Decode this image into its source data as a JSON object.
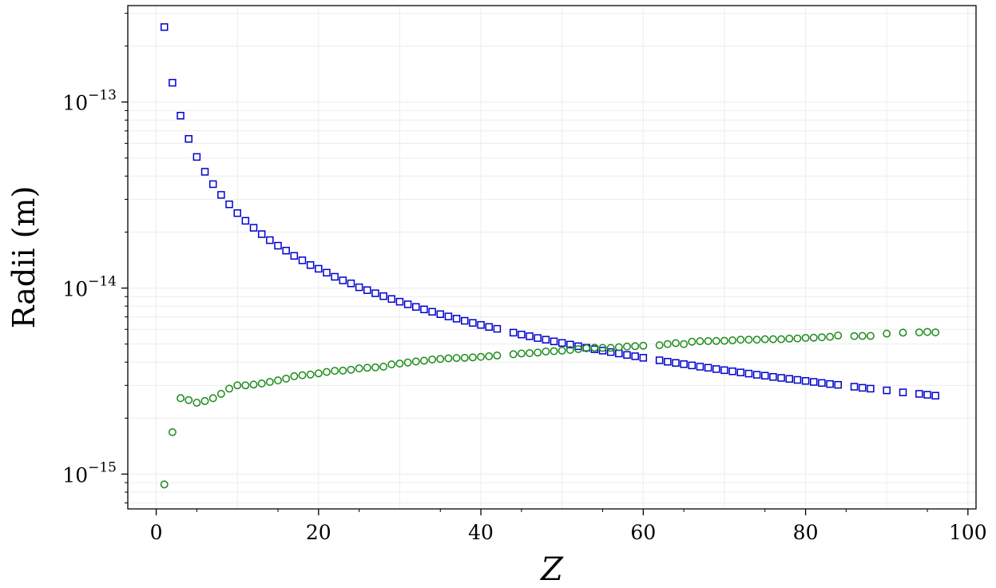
{
  "chart_data": {
    "type": "scatter",
    "title": "",
    "xlabel": "Z",
    "ylabel": "Radii (m)",
    "xlim": [
      -3.5,
      101
    ],
    "ylim": [
      6.5e-16,
      3.3e-13
    ],
    "yscale": "log",
    "grid": true,
    "legend": "none",
    "x_ticks": [
      {
        "value": 0,
        "label": "0"
      },
      {
        "value": 20,
        "label": "20"
      },
      {
        "value": 40,
        "label": "40"
      },
      {
        "value": 60,
        "label": "60"
      },
      {
        "value": 80,
        "label": "80"
      },
      {
        "value": 100,
        "label": "100"
      }
    ],
    "y_ticks": [
      {
        "value": 1e-15,
        "base": "10",
        "exp": "−15"
      },
      {
        "value": 1e-14,
        "base": "10",
        "exp": "−14"
      },
      {
        "value": 1e-13,
        "base": "10",
        "exp": "−13"
      }
    ],
    "series": [
      {
        "marker": "square",
        "color": "#0000cc",
        "x": [
          1,
          2,
          3,
          4,
          5,
          6,
          7,
          8,
          9,
          10,
          11,
          12,
          13,
          14,
          15,
          16,
          17,
          18,
          19,
          20,
          21,
          22,
          23,
          24,
          25,
          26,
          27,
          28,
          29,
          30,
          31,
          32,
          33,
          34,
          35,
          36,
          37,
          38,
          39,
          40,
          41,
          42,
          44,
          45,
          46,
          47,
          48,
          49,
          50,
          51,
          52,
          53,
          54,
          55,
          56,
          57,
          58,
          59,
          60,
          62,
          63,
          64,
          65,
          66,
          67,
          68,
          69,
          70,
          71,
          72,
          73,
          74,
          75,
          76,
          77,
          78,
          79,
          80,
          81,
          82,
          83,
          84,
          86,
          87,
          88,
          90,
          92,
          94,
          95,
          96
        ],
        "y": [
          2.53e-13,
          1.27e-13,
          8.45e-14,
          6.34e-14,
          5.07e-14,
          4.22e-14,
          3.62e-14,
          3.17e-14,
          2.82e-14,
          2.53e-14,
          2.3e-14,
          2.11e-14,
          1.95e-14,
          1.81e-14,
          1.69e-14,
          1.59e-14,
          1.49e-14,
          1.41e-14,
          1.33e-14,
          1.27e-14,
          1.21e-14,
          1.15e-14,
          1.1e-14,
          1.06e-14,
          1.01e-14,
          9.75e-15,
          9.38e-15,
          9.05e-15,
          8.74e-15,
          8.45e-15,
          8.18e-15,
          7.92e-15,
          7.68e-15,
          7.46e-15,
          7.24e-15,
          7.04e-15,
          6.85e-15,
          6.67e-15,
          6.5e-15,
          6.34e-15,
          6.18e-15,
          6.04e-15,
          5.76e-15,
          5.63e-15,
          5.51e-15,
          5.39e-15,
          5.28e-15,
          5.17e-15,
          5.07e-15,
          4.97e-15,
          4.87e-15,
          4.78e-15,
          4.69e-15,
          4.61e-15,
          4.53e-15,
          4.45e-15,
          4.37e-15,
          4.3e-15,
          4.22e-15,
          4.09e-15,
          4.02e-15,
          3.96e-15,
          3.9e-15,
          3.84e-15,
          3.78e-15,
          3.73e-15,
          3.67e-15,
          3.62e-15,
          3.57e-15,
          3.52e-15,
          3.47e-15,
          3.42e-15,
          3.38e-15,
          3.33e-15,
          3.29e-15,
          3.25e-15,
          3.21e-15,
          3.17e-15,
          3.13e-15,
          3.09e-15,
          3.05e-15,
          3.02e-15,
          2.95e-15,
          2.91e-15,
          2.88e-15,
          2.82e-15,
          2.75e-15,
          2.7e-15,
          2.67e-15,
          2.64e-15
        ]
      },
      {
        "marker": "circle",
        "color": "#1a8a1a",
        "x": [
          1,
          2,
          3,
          4,
          5,
          6,
          7,
          8,
          9,
          10,
          11,
          12,
          13,
          14,
          15,
          16,
          17,
          18,
          19,
          20,
          21,
          22,
          23,
          24,
          25,
          26,
          27,
          28,
          29,
          30,
          31,
          32,
          33,
          34,
          35,
          36,
          37,
          38,
          39,
          40,
          41,
          42,
          44,
          45,
          46,
          47,
          48,
          49,
          50,
          51,
          52,
          53,
          54,
          55,
          56,
          57,
          58,
          59,
          60,
          62,
          63,
          64,
          65,
          66,
          67,
          68,
          69,
          70,
          71,
          72,
          73,
          74,
          75,
          76,
          77,
          78,
          79,
          80,
          81,
          82,
          83,
          84,
          86,
          87,
          88,
          90,
          92,
          94,
          95,
          96
        ],
        "y": [
          8.8e-16,
          1.68e-15,
          2.56e-15,
          2.5e-15,
          2.42e-15,
          2.47e-15,
          2.56e-15,
          2.7e-15,
          2.88e-15,
          3e-15,
          3e-15,
          3.03e-15,
          3.07e-15,
          3.13e-15,
          3.19e-15,
          3.26e-15,
          3.36e-15,
          3.4e-15,
          3.43e-15,
          3.48e-15,
          3.54e-15,
          3.59e-15,
          3.6e-15,
          3.64e-15,
          3.7e-15,
          3.73e-15,
          3.75e-15,
          3.78e-15,
          3.89e-15,
          3.93e-15,
          3.98e-15,
          4.03e-15,
          4.07e-15,
          4.13e-15,
          4.16e-15,
          4.19e-15,
          4.21e-15,
          4.22e-15,
          4.24e-15,
          4.27e-15,
          4.3e-15,
          4.34e-15,
          4.41e-15,
          4.45e-15,
          4.47e-15,
          4.5e-15,
          4.56e-15,
          4.58e-15,
          4.61e-15,
          4.65e-15,
          4.7e-15,
          4.75e-15,
          4.78e-15,
          4.77e-15,
          4.77e-15,
          4.81e-15,
          4.85e-15,
          4.87e-15,
          4.9e-15,
          4.93e-15,
          5e-15,
          5.06e-15,
          5e-15,
          5.15e-15,
          5.18e-15,
          5.19e-15,
          5.2e-15,
          5.21e-15,
          5.24e-15,
          5.28e-15,
          5.28e-15,
          5.28e-15,
          5.31e-15,
          5.31e-15,
          5.31e-15,
          5.35e-15,
          5.36e-15,
          5.4e-15,
          5.41e-15,
          5.44e-15,
          5.47e-15,
          5.56e-15,
          5.52e-15,
          5.53e-15,
          5.53e-15,
          5.69e-15,
          5.76e-15,
          5.78e-15,
          5.81e-15,
          5.78e-15
        ]
      }
    ]
  }
}
